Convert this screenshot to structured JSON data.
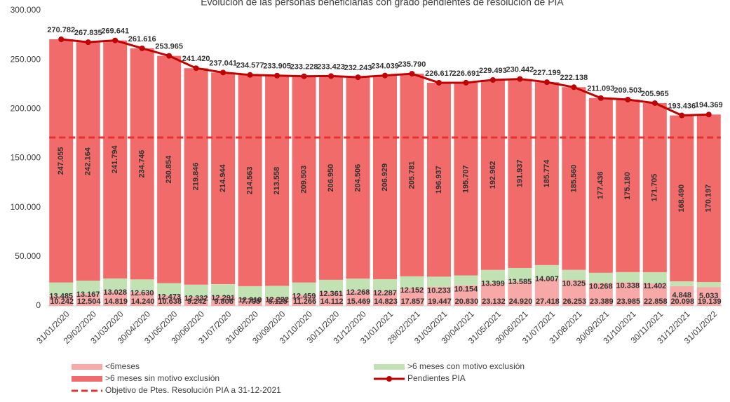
{
  "chart_data": {
    "type": "stacked_bar_line",
    "title": "Evolución de las personas beneficiarias con grado pendientes de resolución de PIA",
    "categories": [
      "31/01/2020",
      "29/02/2020",
      "31/03/2020",
      "30/04/2020",
      "31/05/2020",
      "30/06/2020",
      "31/07/2020",
      "31/08/2020",
      "30/09/2020",
      "31/10/2020",
      "30/11/2020",
      "31/12/2020",
      "31/01/2021",
      "28/02/2021",
      "31/03/2021",
      "30/04/2021",
      "31/05/2021",
      "30/06/2021",
      "31/07/2021",
      "31/08/2021",
      "30/09/2021",
      "31/10/2021",
      "30/11/2021",
      "31/12/2021",
      "31/01/2022"
    ],
    "ylim": [
      0,
      300000
    ],
    "yticks": [
      0,
      {
        "value": 50000,
        "label": "50.000"
      },
      {
        "value": 100000,
        "label": "100.000"
      },
      {
        "value": 150000,
        "label": "150.000"
      },
      {
        "value": 200000,
        "label": "200.000"
      },
      {
        "value": 250000,
        "label": "250.000"
      },
      {
        "value": 300000,
        "label": "300.000"
      }
    ],
    "series": [
      {
        "name": "<6meses",
        "color": "#f7a9a8",
        "values": [
          10242,
          12504,
          14819,
          14240,
          10638,
          9242,
          9806,
          7795,
          8125,
          11266,
          14112,
          15469,
          14823,
          17857,
          19447,
          20830,
          23132,
          24920,
          27418,
          26253,
          23389,
          23985,
          22858,
          20098,
          19139
        ],
        "value_labels": [
          "10.242",
          "12.504",
          "14.819",
          "14.240",
          "10.638",
          "9.242",
          "9.806",
          "7.795",
          "8.125",
          "11.266",
          "14.112",
          "15.469",
          "14.823",
          "17.857",
          "19.447",
          "20.830",
          "23.132",
          "24.920",
          "27.418",
          "26.253",
          "23.389",
          "23.985",
          "22.858",
          "20.098",
          "19.139"
        ]
      },
      {
        "name": ">6 meses con motivo exclusión",
        "color": "#c3e2b3",
        "values": [
          13485,
          13167,
          13028,
          12630,
          12473,
          12332,
          12291,
          12219,
          12222,
          12459,
          12361,
          12268,
          12287,
          12152,
          10233,
          10154,
          13399,
          13585,
          14007,
          10325,
          10268,
          10338,
          11402,
          4848,
          5033
        ],
        "value_labels": [
          "13.485",
          "13.167",
          "13.028",
          "12.630",
          "12.473",
          "12.332",
          "12.291",
          "12.219",
          "12.222",
          "12.459",
          "12.361",
          "12.268",
          "12.287",
          "12.152",
          "10.233",
          "10.154",
          "13.399",
          "13.585",
          "14.007",
          "10.325",
          "10.268",
          "10.338",
          "11.402",
          "4.848",
          "5.033"
        ]
      },
      {
        "name": ">6 meses sin motivo exclusión",
        "color": "#f26b6b",
        "values": [
          247055,
          242164,
          241794,
          234746,
          230854,
          219846,
          214944,
          214563,
          213558,
          209503,
          206950,
          204506,
          206929,
          205781,
          196937,
          195707,
          192962,
          191937,
          185774,
          185560,
          177436,
          175180,
          171705,
          168490,
          170197
        ],
        "value_labels": [
          "247.055",
          "242.164",
          "241.794",
          "234.746",
          "230.854",
          "219.846",
          "214.944",
          "214.563",
          "213.558",
          "209.503",
          "206.950",
          "204.506",
          "206.929",
          "205.781",
          "196.937",
          "195.707",
          "192.962",
          "191.937",
          "185.774",
          "185.560",
          "177.436",
          "175.180",
          "171.705",
          "168.490",
          "170.197"
        ]
      }
    ],
    "line": {
      "name": "Pendientes PIA",
      "color": "#c00000",
      "values": [
        270782,
        267835,
        269641,
        261616,
        253965,
        241420,
        237041,
        234577,
        233905,
        233228,
        233423,
        232243,
        234039,
        235790,
        226617,
        226691,
        229493,
        230442,
        227199,
        222138,
        211093,
        209503,
        205965,
        193436,
        194369
      ],
      "value_labels": [
        "270.782",
        "267.835",
        "269.641",
        "261.616",
        "253.965",
        "241.420",
        "237.041",
        "234.577",
        "233.905",
        "233.228",
        "233.423",
        "232.243",
        "234.039",
        "235.790",
        "226.617",
        "226.691",
        "229.493",
        "230.442",
        "227.199",
        "222.138",
        "211.093",
        "209.503",
        "205.965",
        "193.436",
        "194.369"
      ]
    },
    "target": {
      "name": "Objetivo de Ptes. Resolución PIA a 31-12-2021",
      "color": "#e8302e",
      "value": 171000
    }
  }
}
